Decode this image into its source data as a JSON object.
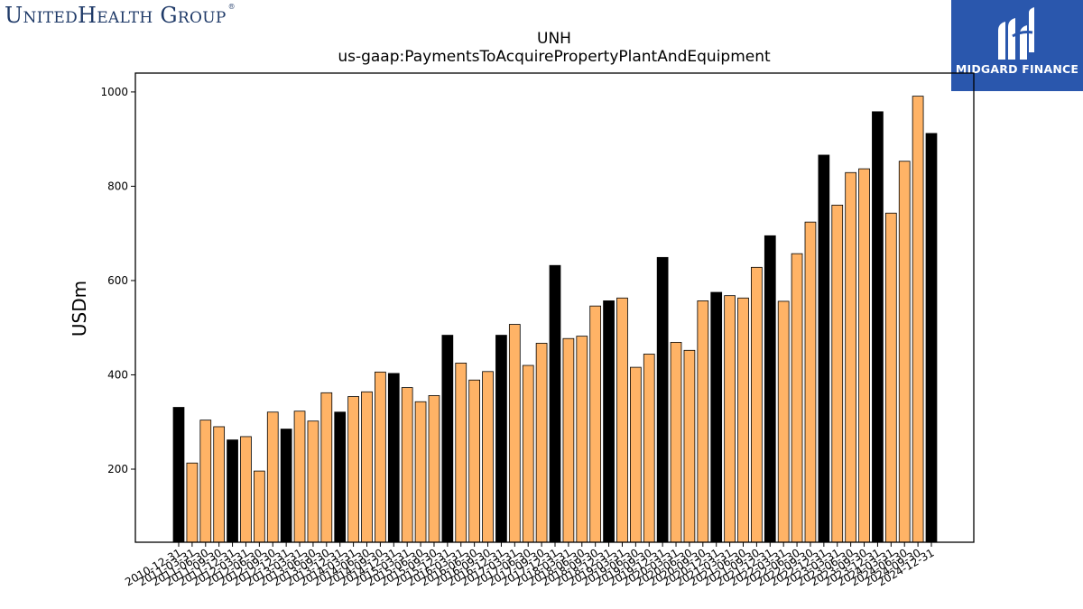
{
  "logos": {
    "left_text": "UnitedHealth Group",
    "left_mark": "®",
    "right_text": "MIDGARD FINANCE",
    "right_icon": "midgard-mh-icon"
  },
  "colors": {
    "highlight": "#000000",
    "bar": "#ffb366",
    "brand_left": "#1f3a68",
    "brand_right_bg": "#2a57ad"
  },
  "chart_data": {
    "type": "bar",
    "title": "UNH",
    "subtitle": "us-gaap:PaymentsToAcquirePropertyPlantAndEquipment",
    "xlabel": "",
    "ylabel": "USDm",
    "ylim": [
      45,
      1040
    ],
    "yticks": [
      200,
      400,
      600,
      800,
      1000
    ],
    "grid": false,
    "legend": "none",
    "highlight_note": "black bars = fiscal year-end (12-31) quarters",
    "categories": [
      "2010-12-31",
      "2011-03-31",
      "2011-06-30",
      "2011-09-30",
      "2011-12-31",
      "2012-03-31",
      "2012-06-30",
      "2012-09-30",
      "2012-12-31",
      "2013-03-31",
      "2013-06-30",
      "2013-09-30",
      "2013-12-31",
      "2014-03-31",
      "2014-06-30",
      "2014-09-30",
      "2014-12-31",
      "2015-03-31",
      "2015-06-30",
      "2015-09-30",
      "2015-12-31",
      "2016-03-31",
      "2016-06-30",
      "2016-09-30",
      "2016-12-31",
      "2017-03-31",
      "2017-06-30",
      "2017-09-30",
      "2017-12-31",
      "2018-03-31",
      "2018-06-30",
      "2018-09-30",
      "2018-12-31",
      "2019-03-31",
      "2019-06-30",
      "2019-09-30",
      "2019-12-31",
      "2020-03-31",
      "2020-06-30",
      "2020-09-30",
      "2020-12-31",
      "2021-03-31",
      "2021-06-30",
      "2021-09-30",
      "2021-12-31",
      "2022-03-31",
      "2022-06-30",
      "2022-09-30",
      "2022-12-31",
      "2023-03-31",
      "2023-06-30",
      "2023-09-30",
      "2023-12-31",
      "2024-03-31",
      "2024-06-30",
      "2024-09-30",
      "2024-12-31"
    ],
    "values": [
      331,
      213,
      304,
      290,
      262,
      269,
      196,
      321,
      285,
      323,
      302,
      362,
      321,
      354,
      364,
      406,
      403,
      373,
      343,
      356,
      484,
      425,
      389,
      407,
      484,
      507,
      420,
      467,
      632,
      477,
      482,
      546,
      557,
      563,
      416,
      444,
      649,
      469,
      452,
      557,
      575,
      568,
      563,
      628,
      695,
      556,
      657,
      724,
      866,
      760,
      829,
      837,
      958,
      743,
      853,
      991,
      912
    ]
  }
}
